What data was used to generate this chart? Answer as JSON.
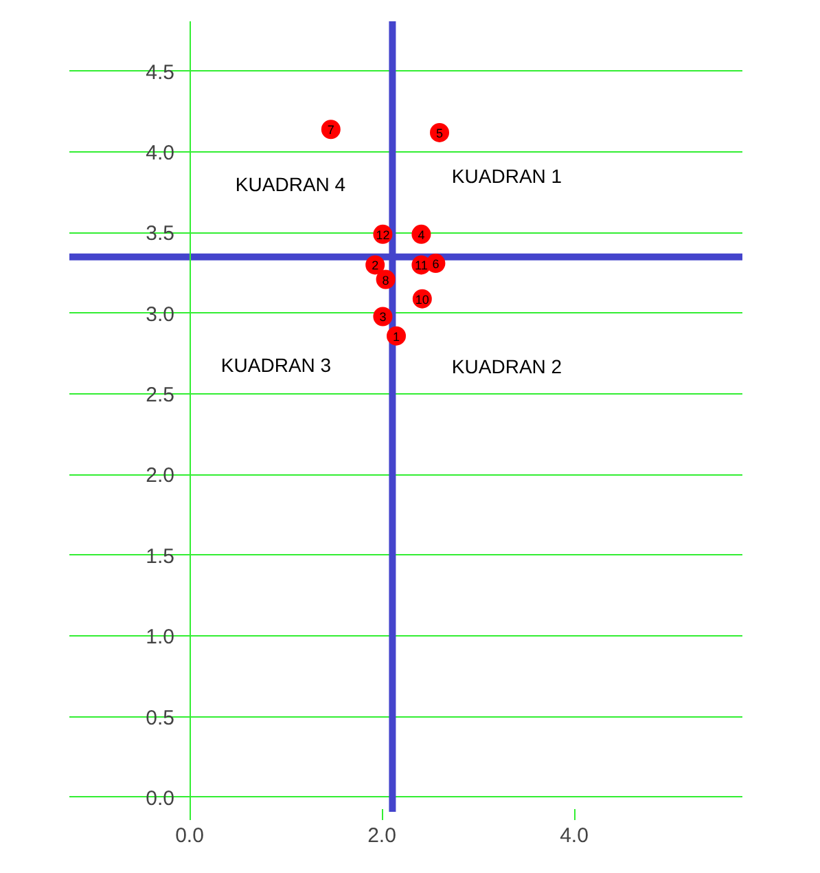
{
  "chart_data": {
    "type": "scatter",
    "x": [
      2.15,
      1.93,
      2.01,
      2.41,
      2.6,
      2.56,
      1.47,
      2.04,
      2.42,
      2.41,
      2.01
    ],
    "series": [
      {
        "color": "#ff0000",
        "values": [
          2.86,
          3.3,
          2.98,
          3.49,
          4.12,
          3.31,
          4.14,
          3.21,
          3.09,
          3.3,
          3.49
        ]
      }
    ],
    "xlim": [
      -1.25,
      5.75
    ],
    "ylim": [
      -0.09,
      4.81
    ],
    "xticks": [
      {
        "value": 0,
        "label": "0.0"
      },
      {
        "value": 2,
        "label": "2.0"
      },
      {
        "value": 4,
        "label": "4.0"
      }
    ],
    "yticks": [
      {
        "value": 0,
        "label": "0.0"
      },
      0.5,
      {
        "value": 1,
        "label": "1.0"
      },
      1.5,
      {
        "value": 2,
        "label": "2.0"
      },
      2.5,
      {
        "value": 3,
        "label": "3.0"
      },
      3.5,
      {
        "value": 4,
        "label": "4.0"
      },
      4.5
    ],
    "grid": "y",
    "marker": "circle",
    "ref_lines": [
      {
        "axis": "x",
        "value": 2.11,
        "color": "#4444cc"
      },
      {
        "axis": "y",
        "value": 3.35,
        "color": "#4444cc"
      }
    ],
    "annotations": [
      {
        "text": "1",
        "x": 2.15,
        "y": 2.86
      },
      {
        "text": "2",
        "x": 1.93,
        "y": 3.3
      },
      {
        "text": "3",
        "x": 2.01,
        "y": 2.98
      },
      {
        "text": "4",
        "x": 2.41,
        "y": 3.49
      },
      {
        "text": "5",
        "x": 2.6,
        "y": 4.12
      },
      {
        "text": "6",
        "x": 2.56,
        "y": 3.31
      },
      {
        "text": "7",
        "x": 1.47,
        "y": 4.14
      },
      {
        "text": "8",
        "x": 2.04,
        "y": 3.21
      },
      {
        "text": "10",
        "x": 2.42,
        "y": 3.09
      },
      {
        "text": "11",
        "x": 2.41,
        "y": 3.3
      },
      {
        "text": "12",
        "x": 2.01,
        "y": 3.49
      },
      "KUADRAN 1",
      "KUADRAN 2",
      "KUADRAN 3",
      "KUADRAN 4"
    ]
  }
}
